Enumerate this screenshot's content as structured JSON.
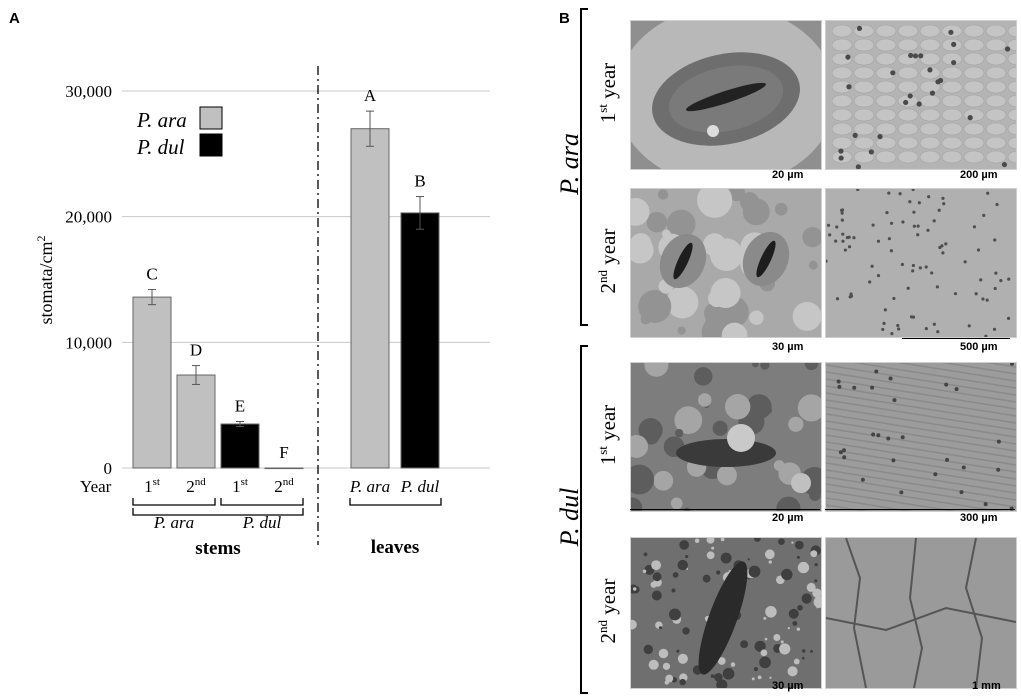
{
  "panels": {
    "a": "A",
    "b": "B"
  },
  "chart_data": {
    "type": "bar",
    "ylabel": "stomata/cm",
    "ylabel_sup": "2",
    "ylim": [
      0,
      30000
    ],
    "yticks": [
      "0",
      "10,000",
      "20,000",
      "30,000"
    ],
    "ytick_values": [
      0,
      10000,
      20000,
      30000
    ],
    "grid": true,
    "legend": {
      "position": "top-left",
      "entries": [
        {
          "name": "P. ara",
          "color": "#c0c0c0"
        },
        {
          "name": "P. dul",
          "color": "#000000"
        }
      ]
    },
    "x_row_label": "Year",
    "bars": [
      {
        "group": "stems",
        "species": "P. ara",
        "tick": "1",
        "tick_sup": "st",
        "value": 13600,
        "error": 600,
        "letter": "C",
        "color": "#c0c0c0"
      },
      {
        "group": "stems",
        "species": "P. ara",
        "tick": "2",
        "tick_sup": "nd",
        "value": 7400,
        "error": 750,
        "letter": "D",
        "color": "#c0c0c0"
      },
      {
        "group": "stems",
        "species": "P. dul",
        "tick": "1",
        "tick_sup": "st",
        "value": 3500,
        "error": 200,
        "letter": "E",
        "color": "#000000"
      },
      {
        "group": "stems",
        "species": "P. dul",
        "tick": "2",
        "tick_sup": "nd",
        "value": 0,
        "error": 0,
        "letter": "F",
        "color": "#000000"
      },
      {
        "group": "leaves",
        "species": "P. ara",
        "tick": "P. ara",
        "tick_sup": "",
        "value": 27000,
        "error": 1400,
        "letter": "A",
        "color": "#c0c0c0"
      },
      {
        "group": "leaves",
        "species": "P. dul",
        "tick": "P. dul",
        "tick_sup": "",
        "value": 20300,
        "error": 1300,
        "letter": "B",
        "color": "#000000"
      }
    ],
    "subgroups": [
      "P. ara",
      "P. dul"
    ],
    "groups": [
      "stems",
      "leaves"
    ]
  },
  "sem": {
    "species": [
      "P. ara",
      "P. dul"
    ],
    "year_labels": [
      {
        "num": "1",
        "sup": "st",
        "text": " year"
      },
      {
        "num": "2",
        "sup": "nd",
        "text": " year"
      },
      {
        "num": "1",
        "sup": "st",
        "text": " year"
      },
      {
        "num": "2",
        "sup": "nd",
        "text": " year"
      }
    ],
    "scales": [
      {
        "left": "20 µm",
        "right": "200 µm"
      },
      {
        "left": "30 µm",
        "right": "500 µm"
      },
      {
        "left": "20 µm",
        "right": "300 µm"
      },
      {
        "left": "30 µm",
        "right": "1 mm"
      }
    ]
  }
}
